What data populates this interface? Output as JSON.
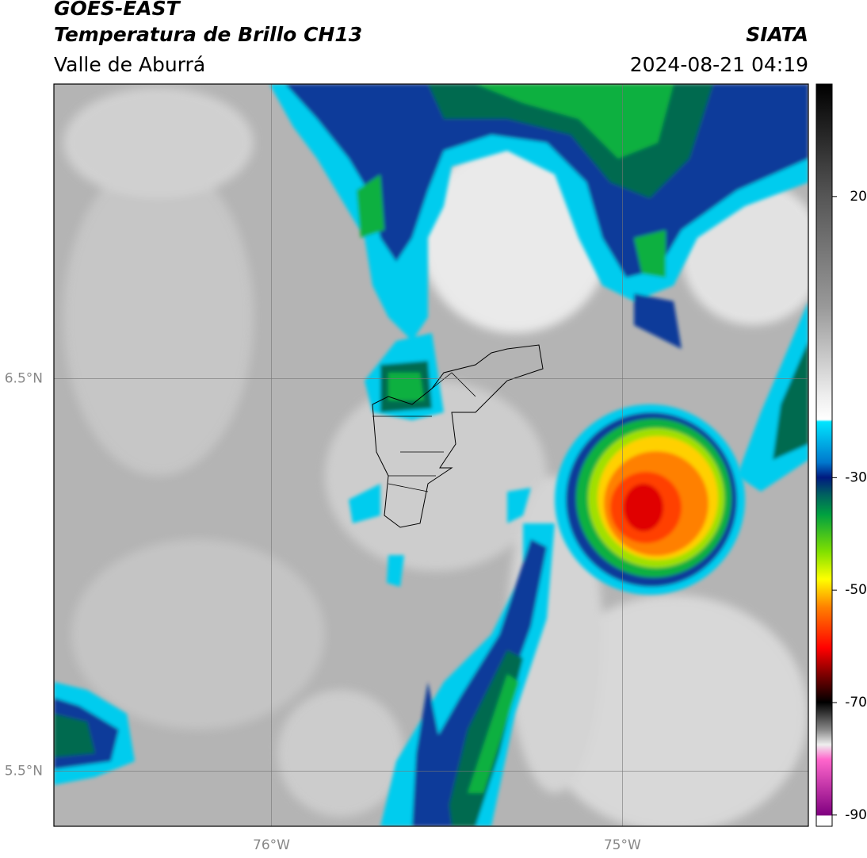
{
  "header": {
    "satellite": "GOES-EAST",
    "product": "Temperatura de Brillo CH13",
    "region": "Valle de Aburrá",
    "agency": "SIATA",
    "datetime": "2024-08-21 04:19"
  },
  "map": {
    "xlim": [
      -76.62,
      -74.47
    ],
    "ylim": [
      5.36,
      7.25
    ],
    "xticks": [
      {
        "value": -76,
        "label": "76°W"
      },
      {
        "value": -75,
        "label": "75°W"
      }
    ],
    "yticks": [
      {
        "value": 6.5,
        "label": "6.5°N"
      },
      {
        "value": 5.5,
        "label": "5.5°N"
      }
    ],
    "grid": true
  },
  "colorbar": {
    "lim": [
      -92,
      40
    ],
    "ticks": [
      20,
      -30,
      -50,
      -70,
      -90
    ]
  }
}
